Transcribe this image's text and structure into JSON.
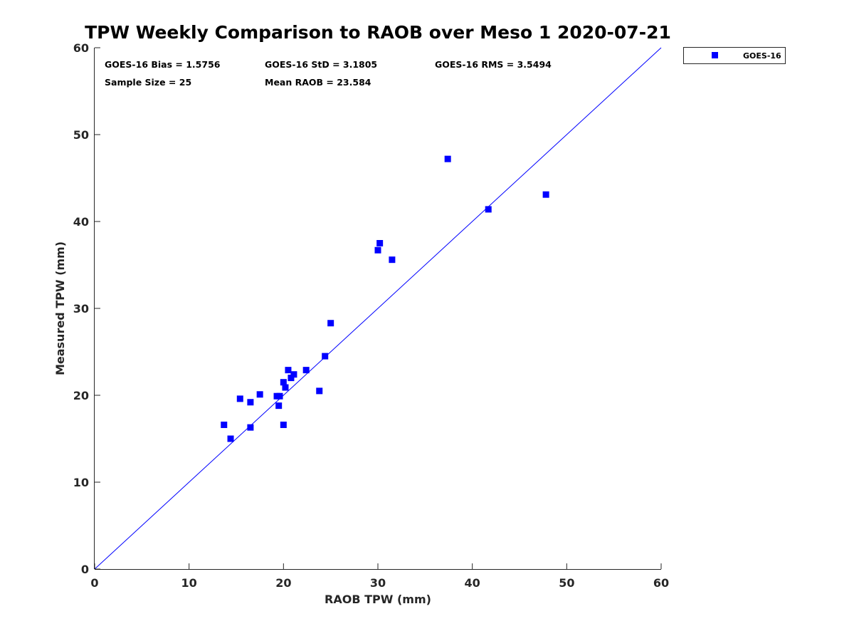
{
  "chart_data": {
    "type": "scatter",
    "title": "TPW Weekly Comparison to RAOB over Meso 1 2020-07-21",
    "xlabel": "RAOB TPW (mm)",
    "ylabel": "Measured TPW (mm)",
    "xlim": [
      0,
      60
    ],
    "ylim": [
      0,
      60
    ],
    "xticks": [
      "0",
      "10",
      "20",
      "30",
      "40",
      "50",
      "60"
    ],
    "yticks": [
      "0",
      "10",
      "20",
      "30",
      "40",
      "50",
      "60"
    ],
    "grid": false,
    "legend_position": "outside-top-right",
    "reference_line": {
      "name": "1:1 line",
      "color": "#0000ff",
      "from": [
        0,
        0
      ],
      "to": [
        60,
        60
      ]
    },
    "stats": {
      "bias": "GOES-16 Bias = 1.5756",
      "std": "GOES-16 StD = 3.1805",
      "rms": "GOES-16 RMS = 3.5494",
      "sample": "Sample Size = 25",
      "mean": "Mean RAOB = 23.584"
    },
    "series": [
      {
        "name": "GOES-16",
        "color": "#0000ff",
        "marker": "square",
        "points": [
          [
            13.7,
            16.6
          ],
          [
            14.4,
            15.0
          ],
          [
            15.4,
            19.6
          ],
          [
            16.5,
            19.2
          ],
          [
            16.5,
            16.3
          ],
          [
            17.5,
            20.1
          ],
          [
            19.3,
            19.9
          ],
          [
            19.5,
            18.8
          ],
          [
            19.6,
            19.9
          ],
          [
            20.0,
            21.5
          ],
          [
            20.0,
            16.6
          ],
          [
            20.2,
            20.9
          ],
          [
            20.5,
            22.9
          ],
          [
            20.8,
            22.0
          ],
          [
            21.1,
            22.4
          ],
          [
            22.4,
            22.9
          ],
          [
            23.8,
            20.5
          ],
          [
            24.4,
            24.5
          ],
          [
            25.0,
            28.3
          ],
          [
            30.0,
            36.7
          ],
          [
            30.2,
            37.5
          ],
          [
            31.5,
            35.6
          ],
          [
            37.4,
            47.2
          ],
          [
            41.7,
            41.4
          ],
          [
            47.8,
            43.1
          ]
        ]
      }
    ]
  }
}
